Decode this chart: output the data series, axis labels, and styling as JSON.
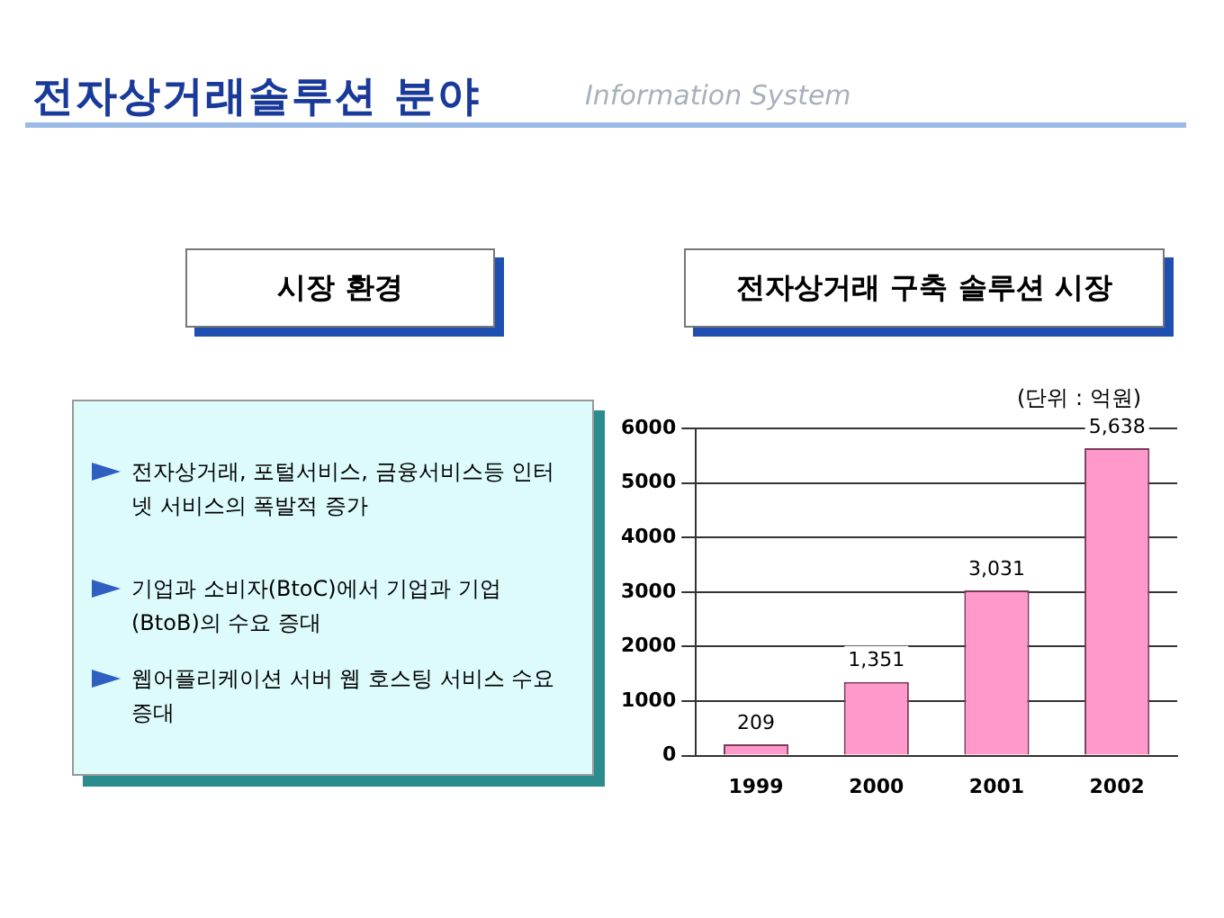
{
  "chart_data": {
    "type": "bar",
    "title": "전자상거래 구축 솔루션 시장",
    "ylabel": "(단위 : 억원)",
    "categories": [
      "1999",
      "2000",
      "2001",
      "2002"
    ],
    "values": [
      209,
      1351,
      3031,
      5638
    ],
    "color": "#ff99cc",
    "value_labels": [
      "209",
      "1,351",
      "3,031",
      "5,638"
    ],
    "ylim": [
      0,
      6000
    ],
    "yticks": [
      0,
      1000,
      2000,
      3000,
      4000,
      5000,
      6000
    ],
    "grid": "y",
    "legend": false,
    "annotations": [
      "전자상거래솔루션 분야",
      "Information System",
      "시장 환경",
      "전자상거래, 포털서비스, 금융서비스등 인터넷 서비스의 폭발적 증가",
      "기업과 소비자(BtoC)에서 기업과 기업(BtoB)의 수요 증대",
      "웹어플리케이션 서버 웹 호스팅 서비스 수요 증대"
    ]
  }
}
